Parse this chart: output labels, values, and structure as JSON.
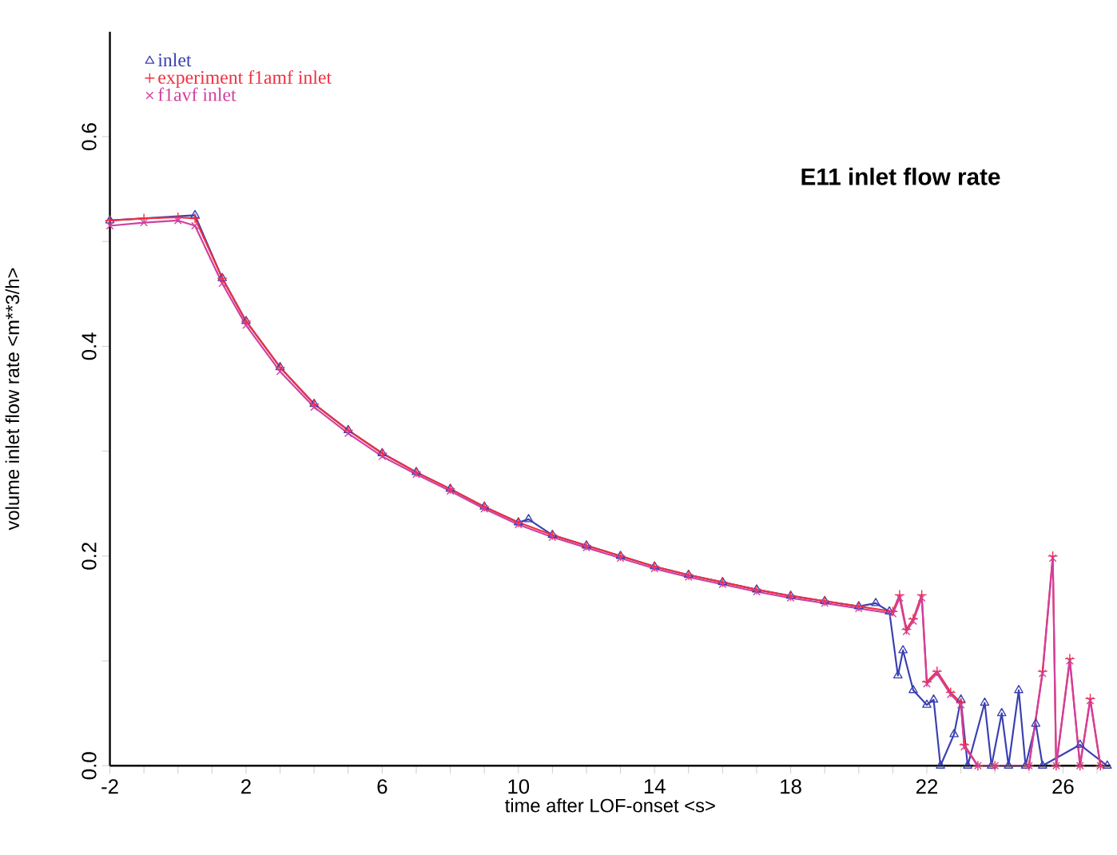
{
  "chart_data": {
    "type": "line",
    "title": "E11 inlet flow rate",
    "xlabel": "time after LOF-onset <s>",
    "ylabel": "volume inlet flow rate <m**3/h>",
    "xlim": [
      -2,
      27.4
    ],
    "ylim": [
      0,
      0.7
    ],
    "xticks": [
      -2,
      {
        "value": -1,
        "label": null
      },
      {
        "value": 0,
        "label": null
      },
      {
        "value": 1,
        "label": null
      },
      2,
      {
        "value": 3,
        "label": null
      },
      {
        "value": 4,
        "label": null
      },
      {
        "value": 5,
        "label": null
      },
      6,
      {
        "value": 7,
        "label": null
      },
      {
        "value": 8,
        "label": null
      },
      {
        "value": 9,
        "label": null
      },
      10,
      {
        "value": 11,
        "label": null
      },
      {
        "value": 12,
        "label": null
      },
      {
        "value": 13,
        "label": null
      },
      14,
      {
        "value": 15,
        "label": null
      },
      {
        "value": 16,
        "label": null
      },
      {
        "value": 17,
        "label": null
      },
      18,
      {
        "value": 19,
        "label": null
      },
      {
        "value": 20,
        "label": null
      },
      {
        "value": 21,
        "label": null
      },
      22,
      {
        "value": 23,
        "label": null
      },
      {
        "value": 24,
        "label": null
      },
      {
        "value": 25,
        "label": null
      },
      26,
      {
        "value": 27,
        "label": null
      }
    ],
    "yticks": [
      {
        "value": 0,
        "label": "0.0"
      },
      {
        "value": 0.1,
        "label": null
      },
      0.2,
      {
        "value": 0.3,
        "label": null
      },
      0.4,
      {
        "value": 0.5,
        "label": null
      },
      0.6
    ],
    "legend": "top left",
    "grid": false,
    "series": [
      {
        "name": "inlet",
        "color": "#3a40b0",
        "marker": "triangle",
        "x": [
          -2,
          0.5,
          1.3,
          2,
          3,
          4,
          5,
          6,
          7,
          8,
          9,
          10,
          10.3,
          11,
          12,
          13,
          14,
          15,
          16,
          17,
          18,
          19,
          20,
          20.5,
          20.9,
          21.15,
          21.3,
          21.6,
          22.0,
          22.2,
          22.4,
          22.8,
          23.0,
          23.2,
          23.7,
          23.9,
          24.2,
          24.4,
          24.7,
          24.9,
          25.2,
          25.4,
          26.5,
          27.3
        ],
        "values": [
          0.52,
          0.525,
          0.465,
          0.424,
          0.38,
          0.345,
          0.32,
          0.298,
          0.28,
          0.264,
          0.247,
          0.232,
          0.235,
          0.22,
          0.21,
          0.2,
          0.19,
          0.182,
          0.175,
          0.168,
          0.162,
          0.157,
          0.152,
          0.155,
          0.147,
          0.086,
          0.11,
          0.072,
          0.058,
          0.063,
          0.0,
          0.03,
          0.063,
          0.0,
          0.06,
          0.0,
          0.05,
          0.0,
          0.072,
          0.0,
          0.04,
          0.0,
          0.02,
          0.0
        ]
      },
      {
        "name": "experiment f1amf inlet",
        "color": "#f03040",
        "marker": "cross",
        "x": [
          -2,
          -1,
          0,
          0.5,
          1.3,
          2,
          3,
          4,
          5,
          6,
          7,
          8,
          9,
          10,
          11,
          12,
          13,
          14,
          15,
          16,
          17,
          18,
          19,
          20,
          21,
          21.2,
          21.4,
          21.6,
          21.85,
          22.0,
          22.3,
          22.7,
          23.0,
          23.1,
          23.5,
          24,
          25,
          25.4,
          25.7,
          25.8,
          26.2,
          26.5,
          26.8,
          27.1
        ],
        "values": [
          0.52,
          0.522,
          0.523,
          0.522,
          0.465,
          0.424,
          0.38,
          0.345,
          0.32,
          0.298,
          0.28,
          0.264,
          0.247,
          0.232,
          0.22,
          0.21,
          0.2,
          0.19,
          0.182,
          0.175,
          0.168,
          0.162,
          0.157,
          0.152,
          0.147,
          0.163,
          0.13,
          0.14,
          0.163,
          0.08,
          0.09,
          0.07,
          0.06,
          0.02,
          0.0,
          0.0,
          0.0,
          0.09,
          0.2,
          0.0,
          0.102,
          0.0,
          0.064,
          0.0
        ]
      },
      {
        "name": "f1avf inlet",
        "color": "#d040a0",
        "marker": "x",
        "x": [
          -2,
          -1,
          0,
          0.5,
          1.3,
          2,
          3,
          4,
          5,
          6,
          7,
          8,
          9,
          10,
          11,
          12,
          13,
          14,
          15,
          16,
          17,
          18,
          19,
          20,
          21,
          21.2,
          21.4,
          21.6,
          21.85,
          22.0,
          22.3,
          22.7,
          23.0,
          23.1,
          23.5,
          24,
          25,
          25.4,
          25.7,
          25.8,
          26.2,
          26.5,
          26.8,
          27.1
        ],
        "values": [
          0.515,
          0.518,
          0.52,
          0.515,
          0.46,
          0.42,
          0.376,
          0.342,
          0.317,
          0.295,
          0.278,
          0.262,
          0.245,
          0.23,
          0.218,
          0.208,
          0.198,
          0.188,
          0.18,
          0.173,
          0.166,
          0.16,
          0.155,
          0.15,
          0.145,
          0.16,
          0.128,
          0.138,
          0.16,
          0.078,
          0.088,
          0.068,
          0.058,
          0.018,
          0.0,
          0.0,
          0.0,
          0.088,
          0.198,
          0.0,
          0.1,
          0.0,
          0.062,
          0.0
        ]
      }
    ]
  }
}
